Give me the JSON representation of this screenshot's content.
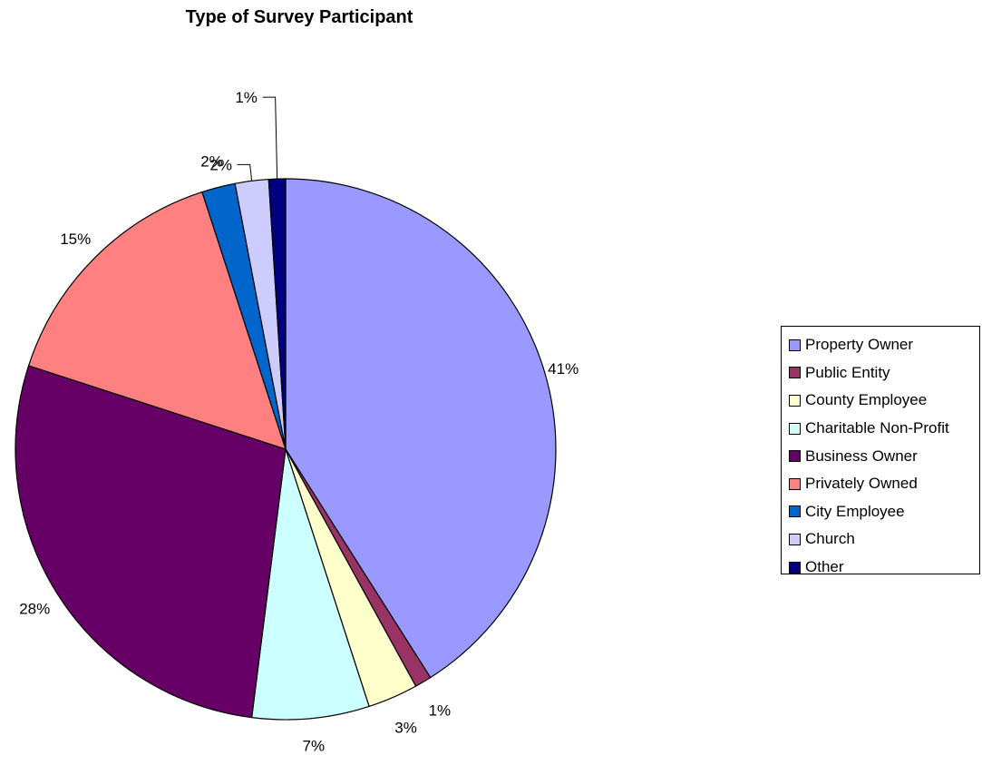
{
  "chart_data": {
    "type": "pie",
    "title": "Type of Survey Participant",
    "categories": [
      "Property Owner",
      "Public Entity",
      "County Employee",
      "Charitable Non-Profit",
      "Business Owner",
      "Privately Owned",
      "City Employee",
      "Church",
      "Other"
    ],
    "values": [
      41,
      1,
      3,
      7,
      28,
      15,
      2,
      2,
      1
    ],
    "labels": [
      "41%",
      "1%",
      "3%",
      "7%",
      "28%",
      "15%",
      "2%",
      "2%",
      "1%"
    ],
    "colors": [
      "#9999FF",
      "#993366",
      "#FFFFCC",
      "#CCFFFF",
      "#660066",
      "#FF8080",
      "#0066CC",
      "#CCCCFF",
      "#000080"
    ],
    "legend_position": "right"
  }
}
